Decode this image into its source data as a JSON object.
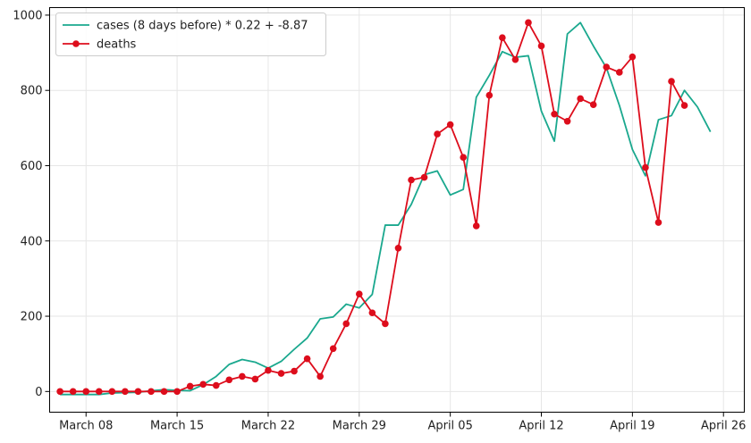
{
  "chart_data": {
    "type": "line",
    "grid": true,
    "legend_position": "top-left",
    "ylim": [
      -55,
      1020
    ],
    "y_ticks": [
      0,
      200,
      400,
      600,
      800,
      1000
    ],
    "x_range_days": [
      -2.8,
      50.6
    ],
    "x_ticks": [
      {
        "day": 0,
        "label": "March 08"
      },
      {
        "day": 7,
        "label": "March 15"
      },
      {
        "day": 14,
        "label": "March 22"
      },
      {
        "day": 21,
        "label": "March 29"
      },
      {
        "day": 28,
        "label": "April 05"
      },
      {
        "day": 35,
        "label": "April 12"
      },
      {
        "day": 42,
        "label": "April 19"
      },
      {
        "day": 49,
        "label": "April 26"
      }
    ],
    "series": [
      {
        "name": "cases (8 days before) * 0.22 + -8.87",
        "color": "#1aa88e",
        "marker": false,
        "start_day": -2,
        "values": [
          -8,
          -8,
          -8,
          -8,
          -4,
          -3,
          -2,
          2,
          5,
          3,
          2,
          18,
          40,
          72,
          85,
          78,
          62,
          80,
          112,
          142,
          193,
          198,
          232,
          222,
          258,
          442,
          442,
          497,
          576,
          586,
          522,
          537,
          782,
          840,
          903,
          888,
          892,
          745,
          665,
          950,
          980,
          918,
          860,
          760,
          643,
          573,
          722,
          733,
          800,
          756,
          690
        ]
      },
      {
        "name": "deaths",
        "color": "#dd0d1c",
        "marker": true,
        "start_day": -2,
        "values": [
          0,
          0,
          0,
          0,
          0,
          0,
          0,
          0,
          0,
          0,
          14,
          19,
          16,
          31,
          40,
          33,
          56,
          48,
          54,
          87,
          40,
          114,
          180,
          259,
          209,
          180,
          381,
          562,
          569,
          684,
          709,
          622,
          440,
          787,
          940,
          882,
          980,
          918,
          737,
          718,
          778,
          762,
          862,
          848,
          889,
          595,
          449,
          824,
          760
        ]
      }
    ]
  }
}
